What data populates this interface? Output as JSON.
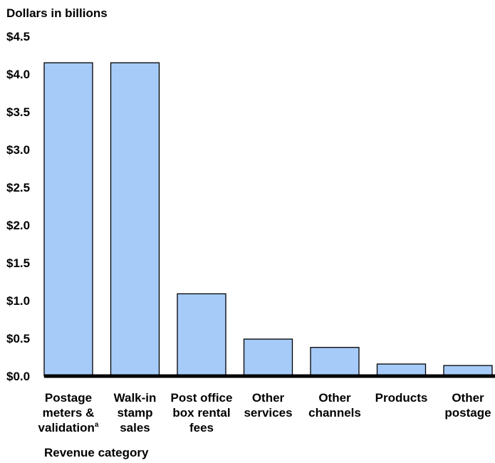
{
  "chart_data": {
    "type": "bar",
    "ylabel": "Dollars in billions",
    "xlabel": "Revenue category",
    "ylim": [
      0,
      4.5
    ],
    "yticks": [
      "$0.0",
      "$0.5",
      "$1.0",
      "$1.5",
      "$2.0",
      "$2.5",
      "$3.0",
      "$3.5",
      "$4.0",
      "$4.5"
    ],
    "categories": [
      {
        "lines": [
          "Postage",
          "meters &",
          "validation"
        ],
        "footnote": "a"
      },
      {
        "lines": [
          "Walk-in",
          "stamp",
          "sales"
        ],
        "footnote": ""
      },
      {
        "lines": [
          "Post office",
          "box rental",
          "fees"
        ],
        "footnote": ""
      },
      {
        "lines": [
          "Other",
          "services"
        ],
        "footnote": ""
      },
      {
        "lines": [
          "Other",
          "channels"
        ],
        "footnote": ""
      },
      {
        "lines": [
          "Products"
        ],
        "footnote": ""
      },
      {
        "lines": [
          "Other",
          "postage"
        ],
        "footnote": ""
      }
    ],
    "values": [
      4.15,
      4.15,
      1.09,
      0.49,
      0.38,
      0.16,
      0.14
    ],
    "colors": {
      "bar": "#a6cbf9",
      "outline": "#000000"
    },
    "grid": false,
    "legend": "none"
  }
}
